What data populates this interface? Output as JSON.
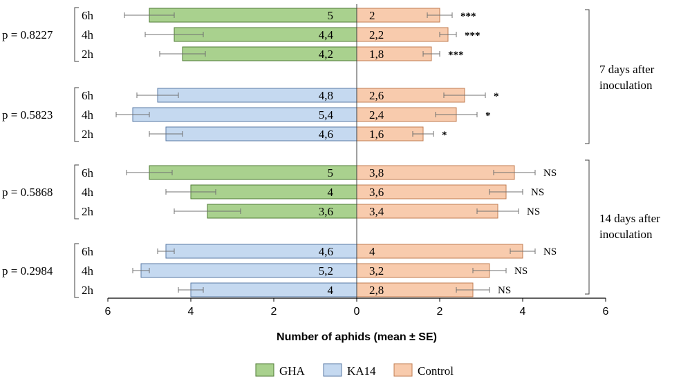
{
  "chart_data": {
    "type": "bar",
    "orientation": "horizontal-diverging",
    "xlabel": "Number of aphids (mean ± SE)",
    "x_ticks": [
      "6",
      "4",
      "2",
      "0",
      "2",
      "4",
      "6"
    ],
    "xlim": [
      -6,
      6
    ],
    "legend_position": "bottom",
    "series": [
      {
        "name": "GHA",
        "color": "#a9d18e"
      },
      {
        "name": "KA14",
        "color": "#c5d9f0"
      },
      {
        "name": "Control",
        "color": "#f8cbad"
      }
    ],
    "groups": [
      {
        "p_label": "p = 0.8227",
        "treatment": "GHA",
        "rows": [
          {
            "time": "6h",
            "treatment_value": 5,
            "treatment_label": "5",
            "treatment_se": 0.6,
            "control_value": 2,
            "control_label": "2",
            "control_se": 0.3,
            "significance": "***"
          },
          {
            "time": "4h",
            "treatment_value": 4.4,
            "treatment_label": "4,4",
            "treatment_se": 0.7,
            "control_value": 2.2,
            "control_label": "2,2",
            "control_se": 0.2,
            "significance": "***"
          },
          {
            "time": "2h",
            "treatment_value": 4.2,
            "treatment_label": "4,2",
            "treatment_se": 0.55,
            "control_value": 1.8,
            "control_label": "1,8",
            "control_se": 0.2,
            "significance": "***"
          }
        ]
      },
      {
        "p_label": "p = 0.5823",
        "treatment": "KA14",
        "rows": [
          {
            "time": "6h",
            "treatment_value": 4.8,
            "treatment_label": "4,8",
            "treatment_se": 0.5,
            "control_value": 2.6,
            "control_label": "2,6",
            "control_se": 0.5,
            "significance": "*"
          },
          {
            "time": "4h",
            "treatment_value": 5.4,
            "treatment_label": "5,4",
            "treatment_se": 0.4,
            "control_value": 2.4,
            "control_label": "2,4",
            "control_se": 0.5,
            "significance": "*"
          },
          {
            "time": "2h",
            "treatment_value": 4.6,
            "treatment_label": "4,6",
            "treatment_se": 0.4,
            "control_value": 1.6,
            "control_label": "1,6",
            "control_se": 0.25,
            "significance": "*"
          }
        ]
      },
      {
        "p_label": "p = 0.5868",
        "treatment": "GHA",
        "rows": [
          {
            "time": "6h",
            "treatment_value": 5,
            "treatment_label": "5",
            "treatment_se": 0.55,
            "control_value": 3.8,
            "control_label": "3,8",
            "control_se": 0.5,
            "significance": "NS"
          },
          {
            "time": "4h",
            "treatment_value": 4,
            "treatment_label": "4",
            "treatment_se": 0.6,
            "control_value": 3.6,
            "control_label": "3,6",
            "control_se": 0.4,
            "significance": "NS"
          },
          {
            "time": "2h",
            "treatment_value": 3.6,
            "treatment_label": "3,6",
            "treatment_se": 0.8,
            "control_value": 3.4,
            "control_label": "3,4",
            "control_se": 0.5,
            "significance": "NS"
          }
        ]
      },
      {
        "p_label": "p = 0.2984",
        "treatment": "KA14",
        "rows": [
          {
            "time": "6h",
            "treatment_value": 4.6,
            "treatment_label": "4,6",
            "treatment_se": 0.2,
            "control_value": 4,
            "control_label": "4",
            "control_se": 0.3,
            "significance": "NS"
          },
          {
            "time": "4h",
            "treatment_value": 5.2,
            "treatment_label": "5,2",
            "treatment_se": 0.2,
            "control_value": 3.2,
            "control_label": "3,2",
            "control_se": 0.4,
            "significance": "NS"
          },
          {
            "time": "2h",
            "treatment_value": 4,
            "treatment_label": "4",
            "treatment_se": 0.3,
            "control_value": 2.8,
            "control_label": "2,8",
            "control_se": 0.4,
            "significance": "NS"
          }
        ]
      }
    ],
    "periods": [
      {
        "label_lines": [
          "7 days after",
          "inoculation"
        ]
      },
      {
        "label_lines": [
          "14 days after",
          "inoculation"
        ]
      }
    ]
  }
}
